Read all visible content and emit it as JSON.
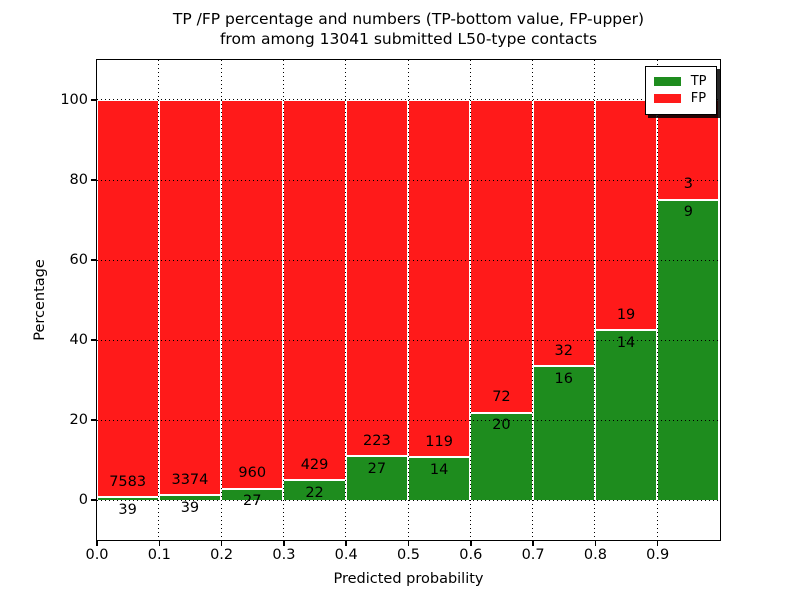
{
  "figure": {
    "title_line1": "TP /FP percentage and numbers (TP-bottom value, FP-upper)",
    "title_line2": "from among 13041 submitted L50-type contacts",
    "xlabel": "Predicted probability",
    "ylabel": "Percentage"
  },
  "legend": {
    "position": "upper-right",
    "items": [
      {
        "label": "TP",
        "color": "#1E8C1E"
      },
      {
        "label": "FP",
        "color": "#FF1A1A"
      }
    ]
  },
  "colors": {
    "tp": "#1E8C1E",
    "fp": "#FF1A1A",
    "background": "#FFFFFF",
    "grid": "#000000",
    "bar_edge": "#FFFFFF"
  },
  "chart_data": {
    "type": "bar",
    "stacked": true,
    "title": "TP /FP percentage and numbers (TP-bottom value, FP-upper)\nfrom among 13041 submitted L50-type contacts",
    "xlabel": "Predicted probability",
    "ylabel": "Percentage",
    "xlim": [
      0.0,
      1.0
    ],
    "ylim": [
      -10,
      110
    ],
    "x_ticks": [
      "0.0",
      "0.1",
      "0.2",
      "0.3",
      "0.4",
      "0.5",
      "0.6",
      "0.7",
      "0.8",
      "0.9"
    ],
    "y_ticks": [
      "0",
      "20",
      "40",
      "60",
      "80",
      "100"
    ],
    "grid": "dotted",
    "legend_position": "upper right",
    "bin_width": 0.1,
    "bin_starts": [
      0.0,
      0.1,
      0.2,
      0.3,
      0.4,
      0.5,
      0.6,
      0.7,
      0.8,
      0.9
    ],
    "total_contacts": 13041,
    "series": [
      {
        "name": "TP",
        "color": "#1E8C1E",
        "counts": [
          39,
          39,
          27,
          22,
          27,
          14,
          20,
          16,
          14,
          9
        ],
        "pct": [
          0.51,
          1.14,
          2.74,
          4.88,
          10.8,
          10.53,
          21.74,
          33.33,
          42.42,
          75.0
        ]
      },
      {
        "name": "FP",
        "color": "#FF1A1A",
        "counts": [
          7583,
          3374,
          960,
          429,
          223,
          119,
          72,
          32,
          19,
          3
        ],
        "pct": [
          99.49,
          98.86,
          97.26,
          95.12,
          89.2,
          89.47,
          78.26,
          66.67,
          57.58,
          25.0
        ]
      }
    ]
  }
}
